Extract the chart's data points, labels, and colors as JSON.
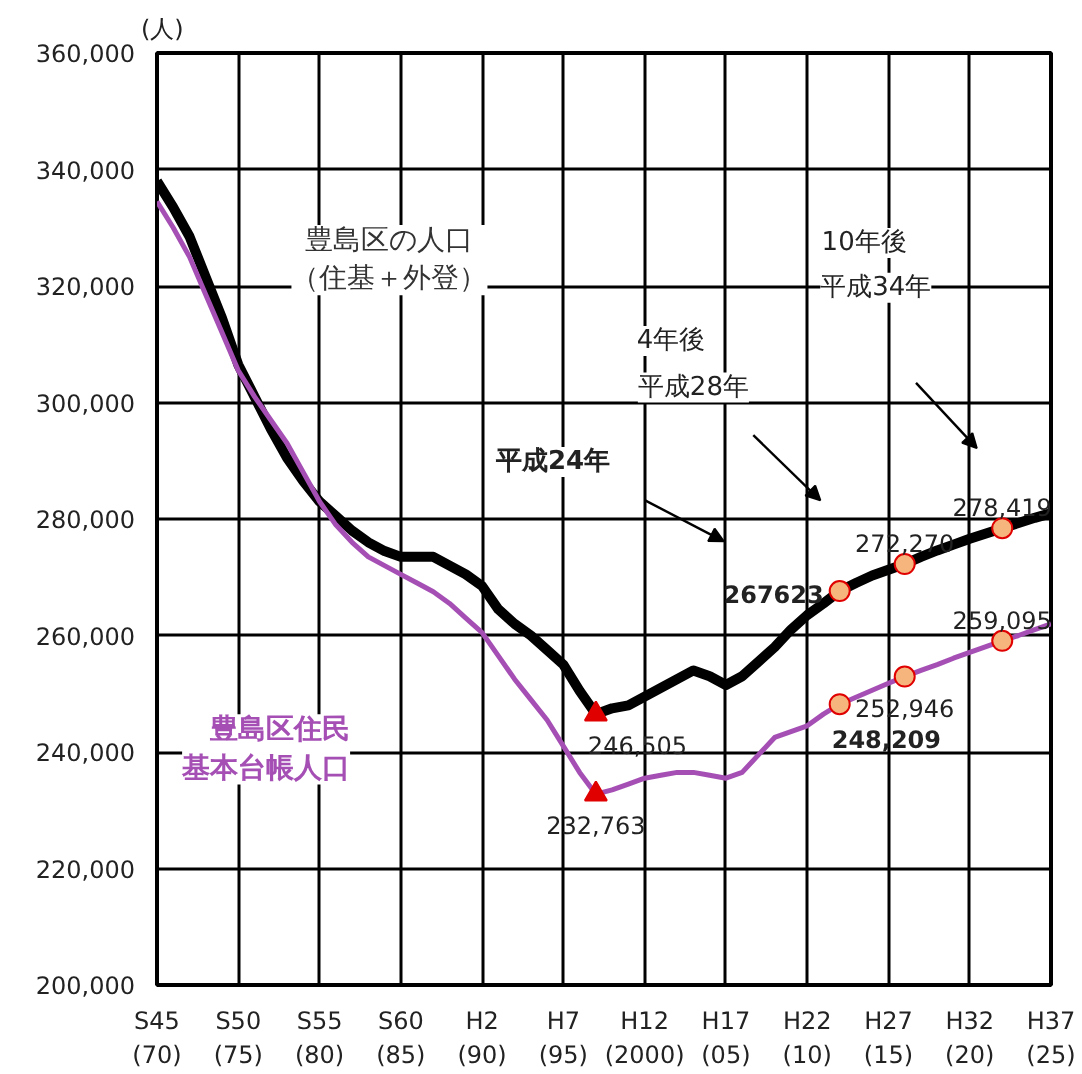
{
  "chart_data": {
    "type": "line",
    "ylabel": "(人)",
    "categories": [
      "S45\n(70)",
      null,
      null,
      null,
      null,
      "S50\n(75)",
      null,
      null,
      null,
      null,
      "S55\n(80)",
      null,
      null,
      null,
      null,
      "S60\n(85)",
      null,
      null,
      null,
      null,
      "H2\n(90)",
      null,
      null,
      null,
      null,
      "H7\n(95)",
      null,
      null,
      null,
      null,
      "H12\n(2000)",
      null,
      null,
      null,
      null,
      "H17\n(05)",
      null,
      null,
      null,
      null,
      "H22\n(10)",
      null,
      null,
      null,
      null,
      "H27\n(15)",
      null,
      null,
      null,
      null,
      "H32\n(20)",
      null,
      null,
      null,
      null,
      "H37\n(25)"
    ],
    "ylim": [
      200000,
      360000
    ],
    "yticks": [
      {
        "value": 200000,
        "label": "200,000"
      },
      {
        "value": 220000,
        "label": "220,000"
      },
      {
        "value": 240000,
        "label": "240,000"
      },
      {
        "value": 260000,
        "label": "260,000"
      },
      {
        "value": 280000,
        "label": "280,000"
      },
      {
        "value": 300000,
        "label": "300,000"
      },
      {
        "value": 320000,
        "label": "320,000"
      },
      {
        "value": 340000,
        "label": "340,000"
      },
      {
        "value": 360000,
        "label": "360,000"
      }
    ],
    "grid": true,
    "legend": false,
    "marker": "none",
    "line_style": "solid",
    "series": [
      {
        "name": "豊島区の人口（住基＋外登）",
        "color": "#000000",
        "values": [
          338000,
          333500,
          328500,
          321500,
          314500,
          306500,
          301000,
          295500,
          290500,
          286500,
          283000,
          280500,
          278000,
          276000,
          274500,
          273500,
          273500,
          273500,
          272000,
          270500,
          268500,
          264500,
          262000,
          260000,
          257500,
          255000,
          250500,
          246505,
          247500,
          248000,
          249500,
          251000,
          252500,
          254000,
          253000,
          251500,
          253000,
          255500,
          258000,
          261000,
          263500,
          265500,
          267623,
          269000,
          270300,
          271300,
          272270,
          273500,
          274600,
          275600,
          276600,
          277500,
          278419,
          279300,
          280200,
          281000
        ]
      },
      {
        "name": "豊島区住民基本台帳人口",
        "color": "#a54fb5",
        "values": [
          334500,
          330000,
          325000,
          318500,
          312000,
          305500,
          301000,
          297000,
          293000,
          288000,
          283000,
          279000,
          276000,
          273500,
          272000,
          270500,
          269000,
          267500,
          265500,
          263000,
          260500,
          256500,
          252500,
          249000,
          245500,
          241000,
          236500,
          232763,
          233500,
          234500,
          235500,
          236000,
          236500,
          236500,
          236000,
          235500,
          236500,
          239500,
          242500,
          243500,
          244500,
          246500,
          248209,
          249400,
          250600,
          251800,
          252946,
          254000,
          255000,
          256100,
          257100,
          258100,
          259095,
          260000,
          261000,
          262000
        ]
      },
      {
        "type": "scatter",
        "marker": "triangle",
        "color": "#e00000",
        "values": [
          null,
          null,
          null,
          null,
          null,
          null,
          null,
          null,
          null,
          null,
          null,
          null,
          null,
          null,
          null,
          null,
          null,
          null,
          null,
          null,
          null,
          null,
          null,
          null,
          null,
          null,
          null,
          246505,
          null,
          null,
          null,
          null,
          null,
          null,
          null,
          null,
          null,
          null,
          null,
          null,
          null,
          null,
          null,
          null,
          null,
          null,
          null,
          null,
          null,
          null,
          null,
          null,
          null,
          null,
          null,
          null
        ],
        "value_labels": [
          null,
          null,
          null,
          null,
          null,
          null,
          null,
          null,
          null,
          null,
          null,
          null,
          null,
          null,
          null,
          null,
          null,
          null,
          null,
          null,
          null,
          null,
          null,
          null,
          null,
          null,
          null,
          "246,505",
          null,
          null,
          null,
          null,
          null,
          null,
          null,
          null,
          null,
          null,
          null,
          null,
          null,
          null,
          null,
          null,
          null,
          null,
          null,
          null,
          null,
          null,
          null,
          null,
          null,
          null,
          null,
          null
        ]
      },
      {
        "type": "scatter",
        "marker": "triangle",
        "color": "#e00000",
        "values": [
          null,
          null,
          null,
          null,
          null,
          null,
          null,
          null,
          null,
          null,
          null,
          null,
          null,
          null,
          null,
          null,
          null,
          null,
          null,
          null,
          null,
          null,
          null,
          null,
          null,
          null,
          null,
          232763,
          null,
          null,
          null,
          null,
          null,
          null,
          null,
          null,
          null,
          null,
          null,
          null,
          null,
          null,
          null,
          null,
          null,
          null,
          null,
          null,
          null,
          null,
          null,
          null,
          null,
          null,
          null,
          null
        ],
        "value_labels": [
          null,
          null,
          null,
          null,
          null,
          null,
          null,
          null,
          null,
          null,
          null,
          null,
          null,
          null,
          null,
          null,
          null,
          null,
          null,
          null,
          null,
          null,
          null,
          null,
          null,
          null,
          null,
          "232,763",
          null,
          null,
          null,
          null,
          null,
          null,
          null,
          null,
          null,
          null,
          null,
          null,
          null,
          null,
          null,
          null,
          null,
          null,
          null,
          null,
          null,
          null,
          null,
          null,
          null,
          null,
          null,
          null
        ]
      },
      {
        "type": "scatter",
        "marker": "circle",
        "color": "#f7b57e",
        "values": [
          null,
          null,
          null,
          null,
          null,
          null,
          null,
          null,
          null,
          null,
          null,
          null,
          null,
          null,
          null,
          null,
          null,
          null,
          null,
          null,
          null,
          null,
          null,
          null,
          null,
          null,
          null,
          null,
          null,
          null,
          null,
          null,
          null,
          null,
          null,
          null,
          null,
          null,
          null,
          null,
          null,
          null,
          267623,
          null,
          null,
          null,
          272270,
          null,
          null,
          null,
          null,
          null,
          278419,
          null,
          null,
          null
        ],
        "value_labels": [
          null,
          null,
          null,
          null,
          null,
          null,
          null,
          null,
          null,
          null,
          null,
          null,
          null,
          null,
          null,
          null,
          null,
          null,
          null,
          null,
          null,
          null,
          null,
          null,
          null,
          null,
          null,
          null,
          null,
          null,
          null,
          null,
          null,
          null,
          null,
          null,
          null,
          null,
          null,
          null,
          null,
          null,
          "267623",
          null,
          null,
          null,
          "272,270",
          null,
          null,
          null,
          null,
          null,
          "278,419",
          null,
          null,
          null
        ]
      },
      {
        "type": "scatter",
        "marker": "circle",
        "color": "#f7b57e",
        "values": [
          null,
          null,
          null,
          null,
          null,
          null,
          null,
          null,
          null,
          null,
          null,
          null,
          null,
          null,
          null,
          null,
          null,
          null,
          null,
          null,
          null,
          null,
          null,
          null,
          null,
          null,
          null,
          null,
          null,
          null,
          null,
          null,
          null,
          null,
          null,
          null,
          null,
          null,
          null,
          null,
          null,
          null,
          248209,
          null,
          null,
          null,
          252946,
          null,
          null,
          null,
          null,
          null,
          259095,
          null,
          null,
          null
        ],
        "value_labels": [
          null,
          null,
          null,
          null,
          null,
          null,
          null,
          null,
          null,
          null,
          null,
          null,
          null,
          null,
          null,
          null,
          null,
          null,
          null,
          null,
          null,
          null,
          null,
          null,
          null,
          null,
          null,
          null,
          null,
          null,
          null,
          null,
          null,
          null,
          null,
          null,
          null,
          null,
          null,
          null,
          null,
          null,
          "248,209",
          null,
          null,
          null,
          "252,946",
          null,
          null,
          null,
          null,
          null,
          "259,095",
          null,
          null,
          null
        ]
      }
    ],
    "annotations": [
      "平成24年",
      "4年後",
      "平成28年",
      "10年後",
      "平成34年"
    ]
  }
}
